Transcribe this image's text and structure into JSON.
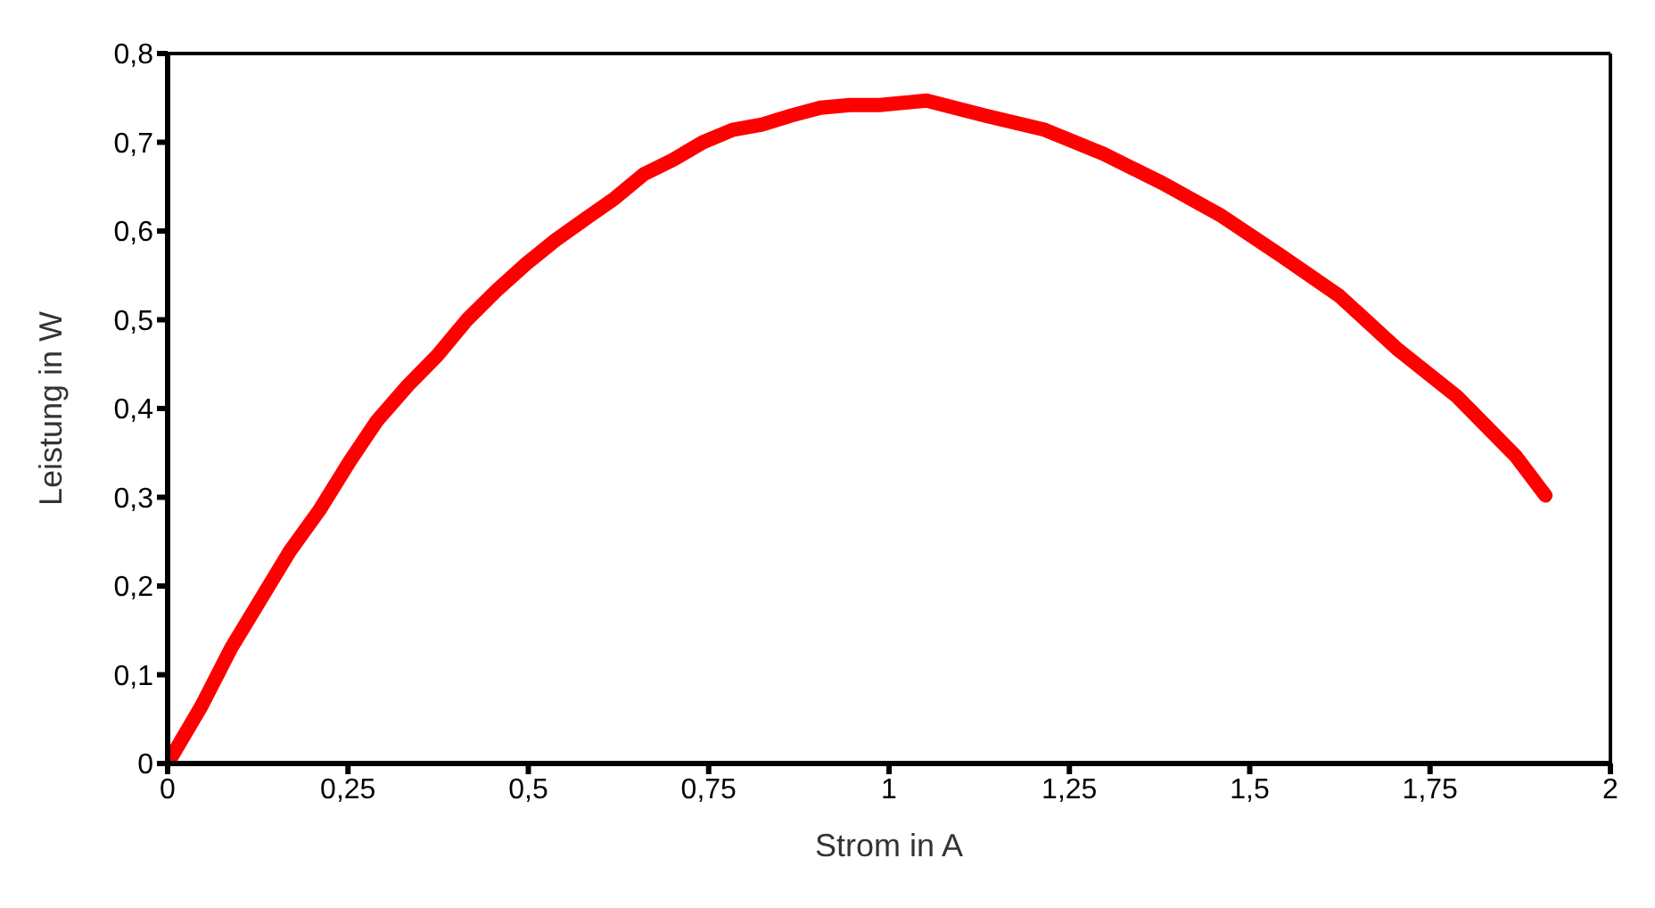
{
  "chart_data": {
    "type": "line",
    "xlabel": "Strom in A",
    "ylabel": "Leistung in W",
    "x": [
      0,
      0.047,
      0.088,
      0.129,
      0.17,
      0.21,
      0.252,
      0.29,
      0.333,
      0.374,
      0.415,
      0.456,
      0.497,
      0.538,
      0.578,
      0.62,
      0.66,
      0.7,
      0.742,
      0.783,
      0.824,
      0.864,
      0.905,
      0.946,
      0.987,
      1.052,
      1.134,
      1.216,
      1.297,
      1.379,
      1.461,
      1.542,
      1.624,
      1.706,
      1.788,
      1.869,
      1.91
    ],
    "series": [
      {
        "color": "#ff0000",
        "values": [
          0,
          0.065,
          0.13,
          0.185,
          0.24,
          0.285,
          0.34,
          0.386,
          0.426,
          0.46,
          0.5,
          0.533,
          0.563,
          0.59,
          0.613,
          0.637,
          0.664,
          0.68,
          0.7,
          0.714,
          0.72,
          0.73,
          0.739,
          0.742,
          0.742,
          0.747,
          0.73,
          0.714,
          0.687,
          0.654,
          0.617,
          0.573,
          0.527,
          0.466,
          0.413,
          0.346,
          0.302
        ]
      }
    ],
    "xlim": [
      0,
      2
    ],
    "xticks": [
      0,
      {
        "value": 0.25,
        "label": "0,25"
      },
      {
        "value": 0.5,
        "label": "0,5"
      },
      {
        "value": 0.75,
        "label": "0,75"
      },
      1,
      {
        "value": 1.25,
        "label": "1,25"
      },
      {
        "value": 1.5,
        "label": "1,5"
      },
      {
        "value": 1.75,
        "label": "1,75"
      },
      2
    ],
    "ylim": [
      0,
      0.8
    ],
    "yticks": [
      0,
      {
        "value": 0.1,
        "label": "0,1"
      },
      {
        "value": 0.2,
        "label": "0,2"
      },
      {
        "value": 0.3,
        "label": "0,3"
      },
      {
        "value": 0.4,
        "label": "0,4"
      },
      {
        "value": 0.5,
        "label": "0,5"
      },
      {
        "value": 0.6,
        "label": "0,6"
      },
      {
        "value": 0.7,
        "label": "0,7"
      },
      {
        "value": 0.8,
        "label": "0,8"
      }
    ],
    "grid": false,
    "legend": false,
    "marker": "none",
    "line_style": "solid"
  }
}
